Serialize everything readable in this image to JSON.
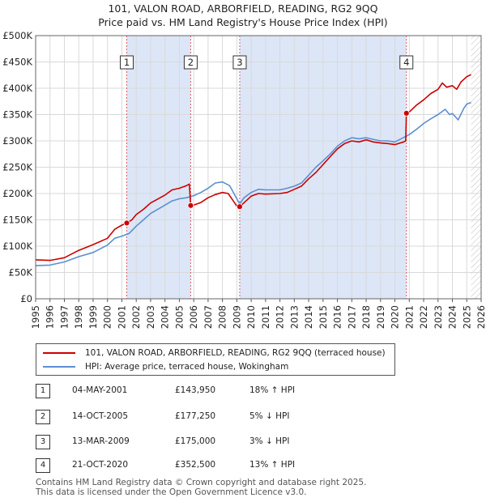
{
  "title_line1": "101, VALON ROAD, ARBORFIELD, READING, RG2 9QQ",
  "title_line2": "Price paid vs. HM Land Registry's House Price Index (HPI)",
  "colors": {
    "property": "#cc0000",
    "hpi": "#5b8fd1",
    "shade": "#dce6f7",
    "grid": "#d9d9d9"
  },
  "chart_data": {
    "type": "line",
    "xlim": [
      1995,
      2026
    ],
    "ylim": [
      0,
      500000
    ],
    "y_ticks": [
      {
        "v": 0,
        "label": "£0"
      },
      {
        "v": 50000,
        "label": "£50K"
      },
      {
        "v": 100000,
        "label": "£100K"
      },
      {
        "v": 150000,
        "label": "£150K"
      },
      {
        "v": 200000,
        "label": "£200K"
      },
      {
        "v": 250000,
        "label": "£250K"
      },
      {
        "v": 300000,
        "label": "£300K"
      },
      {
        "v": 350000,
        "label": "£350K"
      },
      {
        "v": 400000,
        "label": "£400K"
      },
      {
        "v": 450000,
        "label": "£450K"
      },
      {
        "v": 500000,
        "label": "£500K"
      }
    ],
    "x_ticks": [
      "1995",
      "1996",
      "1997",
      "1998",
      "1999",
      "2000",
      "2001",
      "2002",
      "2003",
      "2004",
      "2005",
      "2006",
      "2007",
      "2008",
      "2009",
      "2010",
      "2011",
      "2012",
      "2013",
      "2014",
      "2015",
      "2016",
      "2017",
      "2018",
      "2019",
      "2020",
      "2021",
      "2022",
      "2023",
      "2024",
      "2025",
      "2026"
    ],
    "shaded_periods": [
      [
        2001.34,
        2005.79
      ],
      [
        2009.2,
        2020.8
      ]
    ],
    "future_hatch_from": 2025.3,
    "series": [
      {
        "name": "101, VALON ROAD, ARBORFIELD, READING, RG2 9QQ (terraced house)",
        "color": "#cc0000",
        "points": [
          [
            1995.0,
            74000
          ],
          [
            1996.0,
            73000
          ],
          [
            1997.0,
            78000
          ],
          [
            1998.0,
            92000
          ],
          [
            1999.0,
            103000
          ],
          [
            2000.0,
            115000
          ],
          [
            2000.5,
            132000
          ],
          [
            2001.0,
            140000
          ],
          [
            2001.34,
            143950
          ],
          [
            2001.7,
            150000
          ],
          [
            2002.0,
            160000
          ],
          [
            2002.5,
            170000
          ],
          [
            2003.0,
            182000
          ],
          [
            2004.0,
            197000
          ],
          [
            2004.5,
            207000
          ],
          [
            2005.0,
            210000
          ],
          [
            2005.5,
            215000
          ],
          [
            2005.7,
            218000
          ],
          [
            2005.79,
            177250
          ],
          [
            2006.0,
            178000
          ],
          [
            2006.5,
            183000
          ],
          [
            2007.0,
            192000
          ],
          [
            2007.5,
            198000
          ],
          [
            2008.0,
            202000
          ],
          [
            2008.4,
            200000
          ],
          [
            2008.7,
            188000
          ],
          [
            2009.0,
            176000
          ],
          [
            2009.2,
            175000
          ],
          [
            2009.6,
            185000
          ],
          [
            2010.0,
            195000
          ],
          [
            2010.5,
            200000
          ],
          [
            2011.0,
            199000
          ],
          [
            2012.0,
            200000
          ],
          [
            2012.5,
            202000
          ],
          [
            2013.0,
            208000
          ],
          [
            2013.5,
            214000
          ],
          [
            2014.0,
            228000
          ],
          [
            2014.5,
            240000
          ],
          [
            2015.0,
            255000
          ],
          [
            2015.5,
            270000
          ],
          [
            2016.0,
            285000
          ],
          [
            2016.5,
            295000
          ],
          [
            2017.0,
            300000
          ],
          [
            2017.5,
            298000
          ],
          [
            2018.0,
            302000
          ],
          [
            2018.5,
            298000
          ],
          [
            2019.0,
            296000
          ],
          [
            2019.5,
            295000
          ],
          [
            2020.0,
            293000
          ],
          [
            2020.6,
            298000
          ],
          [
            2020.75,
            300000
          ],
          [
            2020.8,
            352500
          ],
          [
            2021.0,
            355000
          ],
          [
            2021.5,
            368000
          ],
          [
            2022.0,
            378000
          ],
          [
            2022.5,
            390000
          ],
          [
            2023.0,
            398000
          ],
          [
            2023.3,
            410000
          ],
          [
            2023.6,
            402000
          ],
          [
            2024.0,
            405000
          ],
          [
            2024.3,
            398000
          ],
          [
            2024.6,
            412000
          ],
          [
            2025.0,
            422000
          ],
          [
            2025.3,
            426000
          ]
        ]
      },
      {
        "name": "HPI: Average price, terraced house, Wokingham",
        "color": "#5b8fd1",
        "points": [
          [
            1995.0,
            63000
          ],
          [
            1996.0,
            64000
          ],
          [
            1997.0,
            70000
          ],
          [
            1998.0,
            80000
          ],
          [
            1999.0,
            88000
          ],
          [
            2000.0,
            102000
          ],
          [
            2000.5,
            115000
          ],
          [
            2001.0,
            119000
          ],
          [
            2001.5,
            124000
          ],
          [
            2002.0,
            138000
          ],
          [
            2002.5,
            150000
          ],
          [
            2003.0,
            162000
          ],
          [
            2004.0,
            178000
          ],
          [
            2004.5,
            186000
          ],
          [
            2005.0,
            190000
          ],
          [
            2005.5,
            192000
          ],
          [
            2006.0,
            196000
          ],
          [
            2006.5,
            202000
          ],
          [
            2007.0,
            210000
          ],
          [
            2007.5,
            220000
          ],
          [
            2008.0,
            222000
          ],
          [
            2008.5,
            215000
          ],
          [
            2009.0,
            190000
          ],
          [
            2009.2,
            180000
          ],
          [
            2009.5,
            192000
          ],
          [
            2010.0,
            202000
          ],
          [
            2010.5,
            208000
          ],
          [
            2011.0,
            207000
          ],
          [
            2012.0,
            207000
          ],
          [
            2012.5,
            210000
          ],
          [
            2013.0,
            214000
          ],
          [
            2013.5,
            220000
          ],
          [
            2014.0,
            235000
          ],
          [
            2014.5,
            250000
          ],
          [
            2015.0,
            262000
          ],
          [
            2015.5,
            275000
          ],
          [
            2016.0,
            290000
          ],
          [
            2016.5,
            300000
          ],
          [
            2017.0,
            306000
          ],
          [
            2017.5,
            304000
          ],
          [
            2018.0,
            306000
          ],
          [
            2018.5,
            303000
          ],
          [
            2019.0,
            300000
          ],
          [
            2019.5,
            300000
          ],
          [
            2020.0,
            298000
          ],
          [
            2020.5,
            305000
          ],
          [
            2021.0,
            312000
          ],
          [
            2021.5,
            322000
          ],
          [
            2022.0,
            333000
          ],
          [
            2022.5,
            342000
          ],
          [
            2023.0,
            350000
          ],
          [
            2023.5,
            360000
          ],
          [
            2023.8,
            350000
          ],
          [
            2024.0,
            352000
          ],
          [
            2024.4,
            340000
          ],
          [
            2024.8,
            362000
          ],
          [
            2025.0,
            370000
          ],
          [
            2025.3,
            373000
          ]
        ]
      }
    ],
    "sales": [
      {
        "n": "1",
        "x": 2001.34,
        "price": 143950
      },
      {
        "n": "2",
        "x": 2005.79,
        "price": 177250
      },
      {
        "n": "3",
        "x": 2009.2,
        "price": 175000
      },
      {
        "n": "4",
        "x": 2020.8,
        "price": 352500
      }
    ]
  },
  "legend": {
    "property": "101, VALON ROAD, ARBORFIELD, READING, RG2 9QQ (terraced house)",
    "hpi": "HPI: Average price, terraced house, Wokingham"
  },
  "transactions": [
    {
      "n": "1",
      "date": "04-MAY-2001",
      "price": "£143,950",
      "hpi": "18% ↑ HPI"
    },
    {
      "n": "2",
      "date": "14-OCT-2005",
      "price": "£177,250",
      "hpi": "5% ↓ HPI"
    },
    {
      "n": "3",
      "date": "13-MAR-2009",
      "price": "£175,000",
      "hpi": "3% ↓ HPI"
    },
    {
      "n": "4",
      "date": "21-OCT-2020",
      "price": "£352,500",
      "hpi": "13% ↑ HPI"
    }
  ],
  "footer": {
    "line1": "Contains HM Land Registry data © Crown copyright and database right 2025.",
    "line2": "This data is licensed under the Open Government Licence v3.0."
  }
}
